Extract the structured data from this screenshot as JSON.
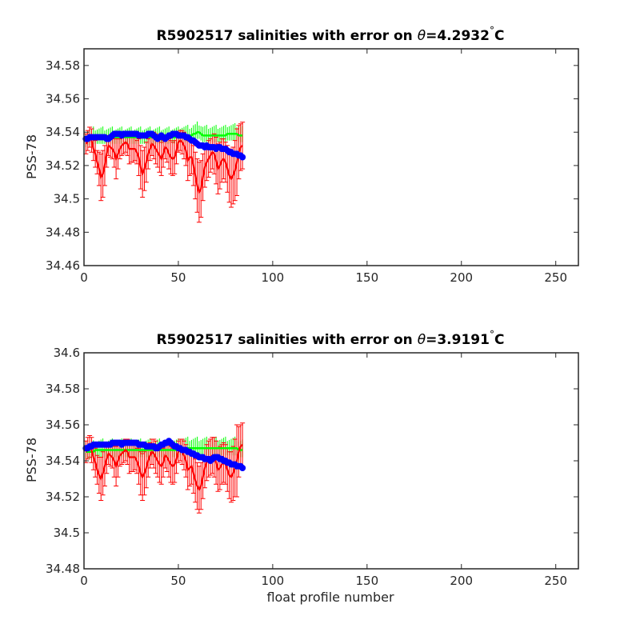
{
  "chart_data": [
    {
      "type": "line",
      "title_prefix": "R5902517 salinities with error on ",
      "title_theta": "θ",
      "title_suffix": "=4.2932",
      "title_degree": "°",
      "title_unit": "C",
      "ylabel": "PSS-78",
      "xlabel": "",
      "xlim": [
        0,
        262
      ],
      "ylim": [
        34.46,
        34.59
      ],
      "xticks": [
        0,
        50,
        100,
        150,
        200,
        250
      ],
      "xtick_labels": [
        "0",
        "50",
        "100",
        "150",
        "200",
        "250"
      ],
      "yticks": [
        34.46,
        34.48,
        34.5,
        34.52,
        34.54,
        34.56,
        34.58
      ],
      "ytick_labels": [
        "34.46",
        "34.48",
        "34.5",
        "34.52",
        "34.54",
        "34.56",
        "34.58"
      ],
      "x_start": 1,
      "series": [
        {
          "color": "#ff0000",
          "error_halfwidth": [
            0.006,
            0.006,
            0.006,
            0.007,
            0.007,
            0.008,
            0.007,
            0.01,
            0.014,
            0.014,
            0.012,
            0.008,
            0.006,
            0.006,
            0.006,
            0.009,
            0.012,
            0.009,
            0.006,
            0.006,
            0.006,
            0.006,
            0.007,
            0.009,
            0.008,
            0.008,
            0.007,
            0.007,
            0.011,
            0.013,
            0.014,
            0.013,
            0.012,
            0.009,
            0.007,
            0.007,
            0.008,
            0.009,
            0.009,
            0.01,
            0.01,
            0.008,
            0.007,
            0.008,
            0.009,
            0.01,
            0.01,
            0.01,
            0.008,
            0.006,
            0.006,
            0.007,
            0.008,
            0.009,
            0.012,
            0.011,
            0.01,
            0.012,
            0.014,
            0.016,
            0.018,
            0.017,
            0.014,
            0.012,
            0.011,
            0.011,
            0.01,
            0.01,
            0.012,
            0.014,
            0.015,
            0.014,
            0.013,
            0.012,
            0.012,
            0.014,
            0.016,
            0.017,
            0.017,
            0.018,
            0.02,
            0.016,
            0.014,
            0.014
          ],
          "values": [
            34.533,
            34.535,
            34.537,
            34.535,
            34.53,
            34.527,
            34.522,
            34.518,
            34.513,
            34.515,
            34.52,
            34.527,
            34.532,
            34.531,
            34.53,
            34.528,
            34.524,
            34.527,
            34.53,
            34.532,
            34.533,
            34.534,
            34.533,
            34.53,
            34.53,
            34.53,
            34.53,
            34.528,
            34.525,
            34.519,
            34.515,
            34.518,
            34.522,
            34.527,
            34.53,
            34.533,
            34.532,
            34.53,
            34.528,
            34.526,
            34.524,
            34.527,
            34.531,
            34.53,
            34.527,
            34.525,
            34.524,
            34.525,
            34.529,
            34.534,
            34.535,
            34.534,
            34.532,
            34.529,
            34.523,
            34.525,
            34.525,
            34.52,
            34.514,
            34.508,
            34.504,
            34.506,
            34.513,
            34.519,
            34.522,
            34.524,
            34.526,
            34.528,
            34.527,
            34.523,
            34.518,
            34.52,
            34.523,
            34.524,
            34.522,
            34.518,
            34.514,
            34.512,
            34.514,
            34.517,
            34.522,
            34.528,
            34.531,
            34.532
          ]
        },
        {
          "color": "#00ff00",
          "values": [
            34.535,
            34.536,
            34.536,
            34.536,
            34.537,
            34.537,
            34.537,
            34.537,
            34.537,
            34.537,
            34.537,
            34.537,
            34.537,
            34.537,
            34.537,
            34.537,
            34.537,
            34.537,
            34.537,
            34.537,
            34.537,
            34.537,
            34.537,
            34.537,
            34.537,
            34.537,
            34.537,
            34.537,
            34.537,
            34.537,
            34.537,
            34.537,
            34.537,
            34.537,
            34.537,
            34.537,
            34.537,
            34.537,
            34.537,
            34.537,
            34.537,
            34.537,
            34.537,
            34.537,
            34.537,
            34.537,
            34.537,
            34.537,
            34.537,
            34.537,
            34.538,
            34.538,
            34.538,
            34.538,
            34.538,
            34.538,
            34.538,
            34.539,
            34.539,
            34.54,
            34.54,
            34.539,
            34.538,
            34.538,
            34.538,
            34.538,
            34.538,
            34.538,
            34.538,
            34.538,
            34.538,
            34.538,
            34.538,
            34.538,
            34.538,
            34.539,
            34.539,
            34.539,
            34.539,
            34.539,
            34.539,
            34.538,
            34.538,
            34.538
          ]
        },
        {
          "color": "#0000ff",
          "values": [
            34.536,
            34.536,
            34.537,
            34.537,
            34.537,
            34.537,
            34.537,
            34.537,
            34.537,
            34.537,
            34.537,
            34.536,
            34.536,
            34.537,
            34.538,
            34.539,
            34.539,
            34.539,
            34.539,
            34.538,
            34.539,
            34.539,
            34.539,
            34.539,
            34.539,
            34.539,
            34.539,
            34.539,
            34.538,
            34.538,
            34.538,
            34.538,
            34.538,
            34.539,
            34.539,
            34.539,
            34.538,
            34.537,
            34.536,
            34.537,
            34.538,
            34.537,
            34.536,
            34.537,
            34.538,
            34.538,
            34.539,
            34.539,
            34.539,
            34.538,
            34.538,
            34.538,
            34.538,
            34.537,
            34.537,
            34.536,
            34.535,
            34.535,
            34.534,
            34.533,
            34.532,
            34.532,
            34.532,
            34.531,
            34.532,
            34.531,
            34.531,
            34.531,
            34.531,
            34.53,
            34.531,
            34.531,
            34.53,
            34.53,
            34.53,
            34.529,
            34.528,
            34.528,
            34.527,
            34.527,
            34.527,
            34.526,
            34.526,
            34.525
          ]
        }
      ]
    },
    {
      "type": "line",
      "title_prefix": "R5902517 salinities with error on ",
      "title_theta": "θ",
      "title_suffix": "=3.9191",
      "title_degree": "°",
      "title_unit": "C",
      "ylabel": "PSS-78",
      "xlabel": "float profile number",
      "xlim": [
        0,
        262
      ],
      "ylim": [
        34.48,
        34.6
      ],
      "xticks": [
        0,
        50,
        100,
        150,
        200,
        250
      ],
      "xtick_labels": [
        "0",
        "50",
        "100",
        "150",
        "200",
        "250"
      ],
      "yticks": [
        34.48,
        34.5,
        34.52,
        34.54,
        34.56,
        34.58,
        34.6
      ],
      "ytick_labels": [
        "34.48",
        "34.5",
        "34.52",
        "34.54",
        "34.56",
        "34.58",
        "34.6"
      ],
      "x_start": 1,
      "series": [
        {
          "color": "#ff0000",
          "error_halfwidth": [
            0.006,
            0.006,
            0.006,
            0.007,
            0.007,
            0.008,
            0.008,
            0.01,
            0.012,
            0.012,
            0.011,
            0.008,
            0.006,
            0.006,
            0.006,
            0.009,
            0.011,
            0.009,
            0.006,
            0.006,
            0.006,
            0.006,
            0.007,
            0.009,
            0.008,
            0.008,
            0.007,
            0.007,
            0.01,
            0.012,
            0.013,
            0.012,
            0.011,
            0.009,
            0.007,
            0.007,
            0.008,
            0.009,
            0.009,
            0.01,
            0.01,
            0.008,
            0.007,
            0.008,
            0.009,
            0.01,
            0.01,
            0.01,
            0.008,
            0.006,
            0.006,
            0.007,
            0.008,
            0.009,
            0.011,
            0.01,
            0.01,
            0.011,
            0.012,
            0.013,
            0.013,
            0.013,
            0.012,
            0.011,
            0.01,
            0.01,
            0.01,
            0.01,
            0.011,
            0.012,
            0.012,
            0.012,
            0.011,
            0.011,
            0.011,
            0.012,
            0.013,
            0.014,
            0.015,
            0.016,
            0.02,
            0.014,
            0.012,
            0.012
          ],
          "values": [
            34.545,
            34.547,
            34.548,
            34.546,
            34.542,
            34.539,
            34.535,
            34.532,
            34.53,
            34.533,
            34.537,
            34.541,
            34.544,
            34.543,
            34.542,
            34.54,
            34.537,
            34.54,
            34.543,
            34.544,
            34.545,
            34.546,
            34.545,
            34.542,
            34.542,
            34.542,
            34.542,
            34.54,
            34.537,
            34.533,
            34.531,
            34.533,
            34.536,
            34.54,
            34.543,
            34.545,
            34.544,
            34.542,
            34.54,
            34.538,
            34.537,
            34.539,
            34.543,
            34.542,
            34.54,
            34.538,
            34.537,
            34.538,
            34.541,
            34.545,
            34.546,
            34.545,
            34.543,
            34.54,
            34.535,
            34.536,
            34.537,
            34.533,
            34.529,
            34.526,
            34.524,
            34.526,
            34.531,
            34.536,
            34.539,
            34.541,
            34.542,
            34.543,
            34.542,
            34.539,
            34.535,
            34.536,
            34.538,
            34.539,
            34.538,
            34.535,
            34.532,
            34.531,
            34.533,
            34.536,
            34.54,
            34.545,
            34.548,
            34.549
          ]
        },
        {
          "color": "#00ff00",
          "values": [
            34.545,
            34.545,
            34.545,
            34.545,
            34.545,
            34.546,
            34.546,
            34.546,
            34.546,
            34.546,
            34.546,
            34.546,
            34.546,
            34.546,
            34.546,
            34.546,
            34.546,
            34.546,
            34.546,
            34.546,
            34.546,
            34.546,
            34.546,
            34.546,
            34.546,
            34.546,
            34.546,
            34.546,
            34.546,
            34.546,
            34.546,
            34.546,
            34.546,
            34.546,
            34.546,
            34.546,
            34.546,
            34.546,
            34.546,
            34.546,
            34.546,
            34.546,
            34.546,
            34.546,
            34.546,
            34.546,
            34.546,
            34.546,
            34.546,
            34.546,
            34.547,
            34.547,
            34.547,
            34.547,
            34.547,
            34.547,
            34.547,
            34.547,
            34.547,
            34.547,
            34.547,
            34.547,
            34.547,
            34.547,
            34.547,
            34.547,
            34.547,
            34.547,
            34.547,
            34.547,
            34.547,
            34.547,
            34.547,
            34.547,
            34.547,
            34.547,
            34.547,
            34.547,
            34.547,
            34.547,
            34.547,
            34.546,
            34.546,
            34.546
          ]
        },
        {
          "color": "#0000ff",
          "values": [
            34.547,
            34.547,
            34.548,
            34.548,
            34.549,
            34.549,
            34.549,
            34.549,
            34.549,
            34.549,
            34.549,
            34.549,
            34.549,
            34.549,
            34.55,
            34.55,
            34.55,
            34.55,
            34.55,
            34.549,
            34.55,
            34.55,
            34.55,
            34.55,
            34.55,
            34.55,
            34.55,
            34.55,
            34.549,
            34.549,
            34.549,
            34.549,
            34.548,
            34.548,
            34.548,
            34.548,
            34.548,
            34.547,
            34.547,
            34.548,
            34.549,
            34.549,
            34.55,
            34.55,
            34.551,
            34.55,
            34.549,
            34.548,
            34.548,
            34.547,
            34.547,
            34.546,
            34.546,
            34.546,
            34.545,
            34.545,
            34.544,
            34.544,
            34.543,
            34.543,
            34.542,
            34.542,
            34.542,
            34.541,
            34.541,
            34.541,
            34.54,
            34.541,
            34.542,
            34.542,
            34.542,
            34.541,
            34.541,
            34.54,
            34.54,
            34.539,
            34.539,
            34.538,
            34.538,
            34.538,
            34.537,
            34.537,
            34.537,
            34.536
          ]
        }
      ]
    }
  ]
}
